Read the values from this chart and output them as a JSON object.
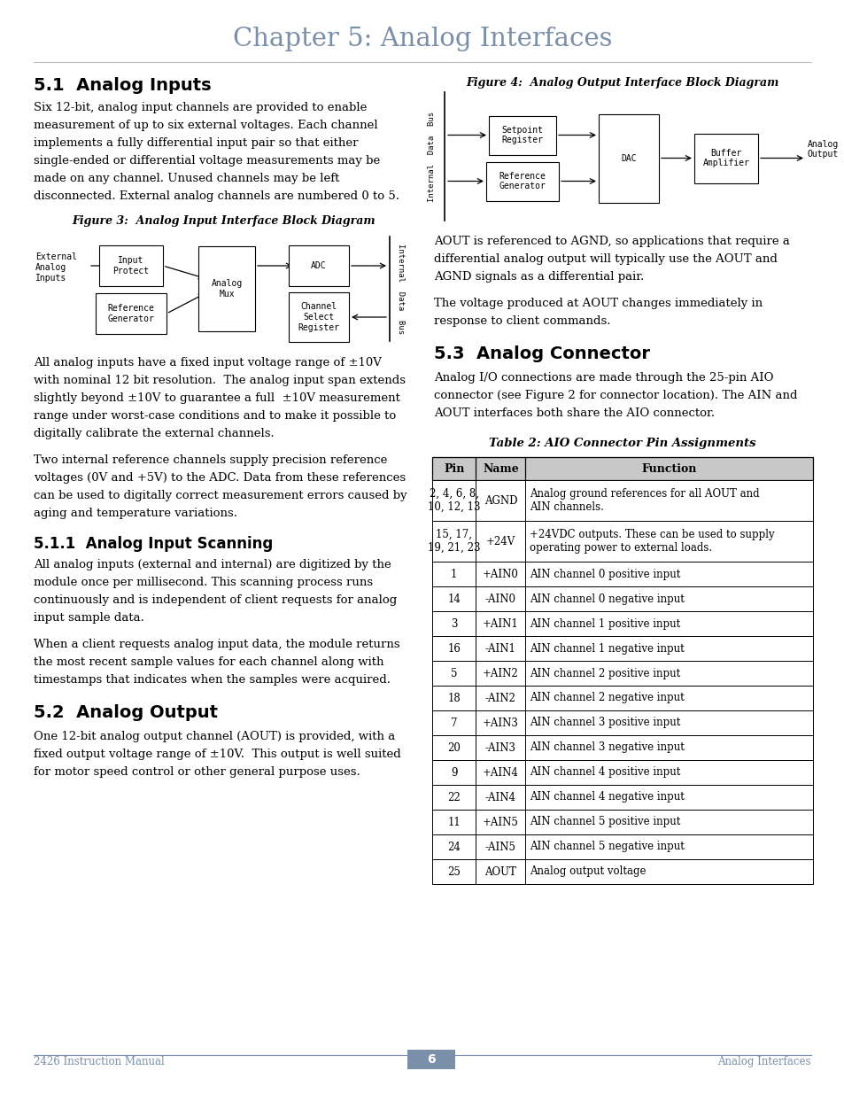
{
  "title": "Chapter 5: Analog Interfaces",
  "title_color": "#7a8fa8",
  "bg_color": "#ffffff",
  "section_51_title": "5.1  Analog Inputs",
  "section_51_text": [
    "Six 12-bit, analog input channels are provided to enable",
    "measurement of up to six external voltages. Each channel",
    "implements a fully differential input pair so that either",
    "single-ended or differential voltage measurements may be",
    "made on any channel. Unused channels may be left",
    "disconnected. External analog channels are numbered 0 to 5."
  ],
  "fig3_caption": "Figure 3:  Analog Input Interface Block Diagram",
  "section_51_para2": [
    "All analog inputs have a fixed input voltage range of ±10V",
    "with nominal 12 bit resolution.  The analog input span extends",
    "slightly beyond ±10V to guarantee a full  ±10V measurement",
    "range under worst-case conditions and to make it possible to",
    "digitally calibrate the external channels."
  ],
  "section_51_para3": [
    "Two internal reference channels supply precision reference",
    "voltages (0V and +5V) to the ADC. Data from these references",
    "can be used to digitally correct measurement errors caused by",
    "aging and temperature variations."
  ],
  "section_511_title": "5.1.1  Analog Input Scanning",
  "section_511_para1": [
    "All analog inputs (external and internal) are digitized by the",
    "module once per millisecond. This scanning process runs",
    "continuously and is independent of client requests for analog",
    "input sample data."
  ],
  "section_511_para2": [
    "When a client requests analog input data, the module returns",
    "the most recent sample values for each channel along with",
    "timestamps that indicates when the samples were acquired."
  ],
  "section_52_title": "5.2  Analog Output",
  "section_52_text": [
    "One 12-bit analog output channel (AOUT) is provided, with a",
    "fixed output voltage range of ±10V.  This output is well suited",
    "for motor speed control or other general purpose uses."
  ],
  "fig4_caption": "Figure 4:  Analog Output Interface Block Diagram",
  "section_52_para2": [
    "AOUT is referenced to AGND, so applications that require a",
    "differential analog output will typically use the AOUT and",
    "AGND signals as a differential pair."
  ],
  "section_52_para3": [
    "The voltage produced at AOUT changes immediately in",
    "response to client commands."
  ],
  "section_53_title": "5.3  Analog Connector",
  "section_53_para1": [
    "Analog I/O connections are made through the 25-pin AIO",
    "connector (see Figure 2 for connector location). The AIN and",
    "AOUT interfaces both share the AIO connector."
  ],
  "table2_caption": "Table 2: AIO Connector Pin Assignments",
  "table2_headers": [
    "Pin",
    "Name",
    "Function"
  ],
  "table2_rows": [
    [
      "2, 4, 6, 8,\n10, 12, 13",
      "AGND",
      "Analog ground references for all AOUT and\nAIN channels."
    ],
    [
      "15, 17,\n19, 21, 23",
      "+24V",
      "+24VDC outputs. These can be used to supply\noperating power to external loads."
    ],
    [
      "1",
      "+AIN0",
      "AIN channel 0 positive input"
    ],
    [
      "14",
      "-AIN0",
      "AIN channel 0 negative input"
    ],
    [
      "3",
      "+AIN1",
      "AIN channel 1 positive input"
    ],
    [
      "16",
      "-AIN1",
      "AIN channel 1 negative input"
    ],
    [
      "5",
      "+AIN2",
      "AIN channel 2 positive input"
    ],
    [
      "18",
      "-AIN2",
      "AIN channel 2 negative input"
    ],
    [
      "7",
      "+AIN3",
      "AIN channel 3 positive input"
    ],
    [
      "20",
      "-AIN3",
      "AIN channel 3 negative input"
    ],
    [
      "9",
      "+AIN4",
      "AIN channel 4 positive input"
    ],
    [
      "22",
      "-AIN4",
      "AIN channel 4 negative input"
    ],
    [
      "11",
      "+AIN5",
      "AIN channel 5 positive input"
    ],
    [
      "24",
      "-AIN5",
      "AIN channel 5 negative input"
    ],
    [
      "25",
      "AOUT",
      "Analog output voltage"
    ]
  ],
  "footer_left": "2426 Instruction Manual",
  "footer_center": "6",
  "footer_right": "Analog Interfaces",
  "footer_color": "#7a8fa8",
  "text_color": "#000000",
  "heading_color": "#000000"
}
